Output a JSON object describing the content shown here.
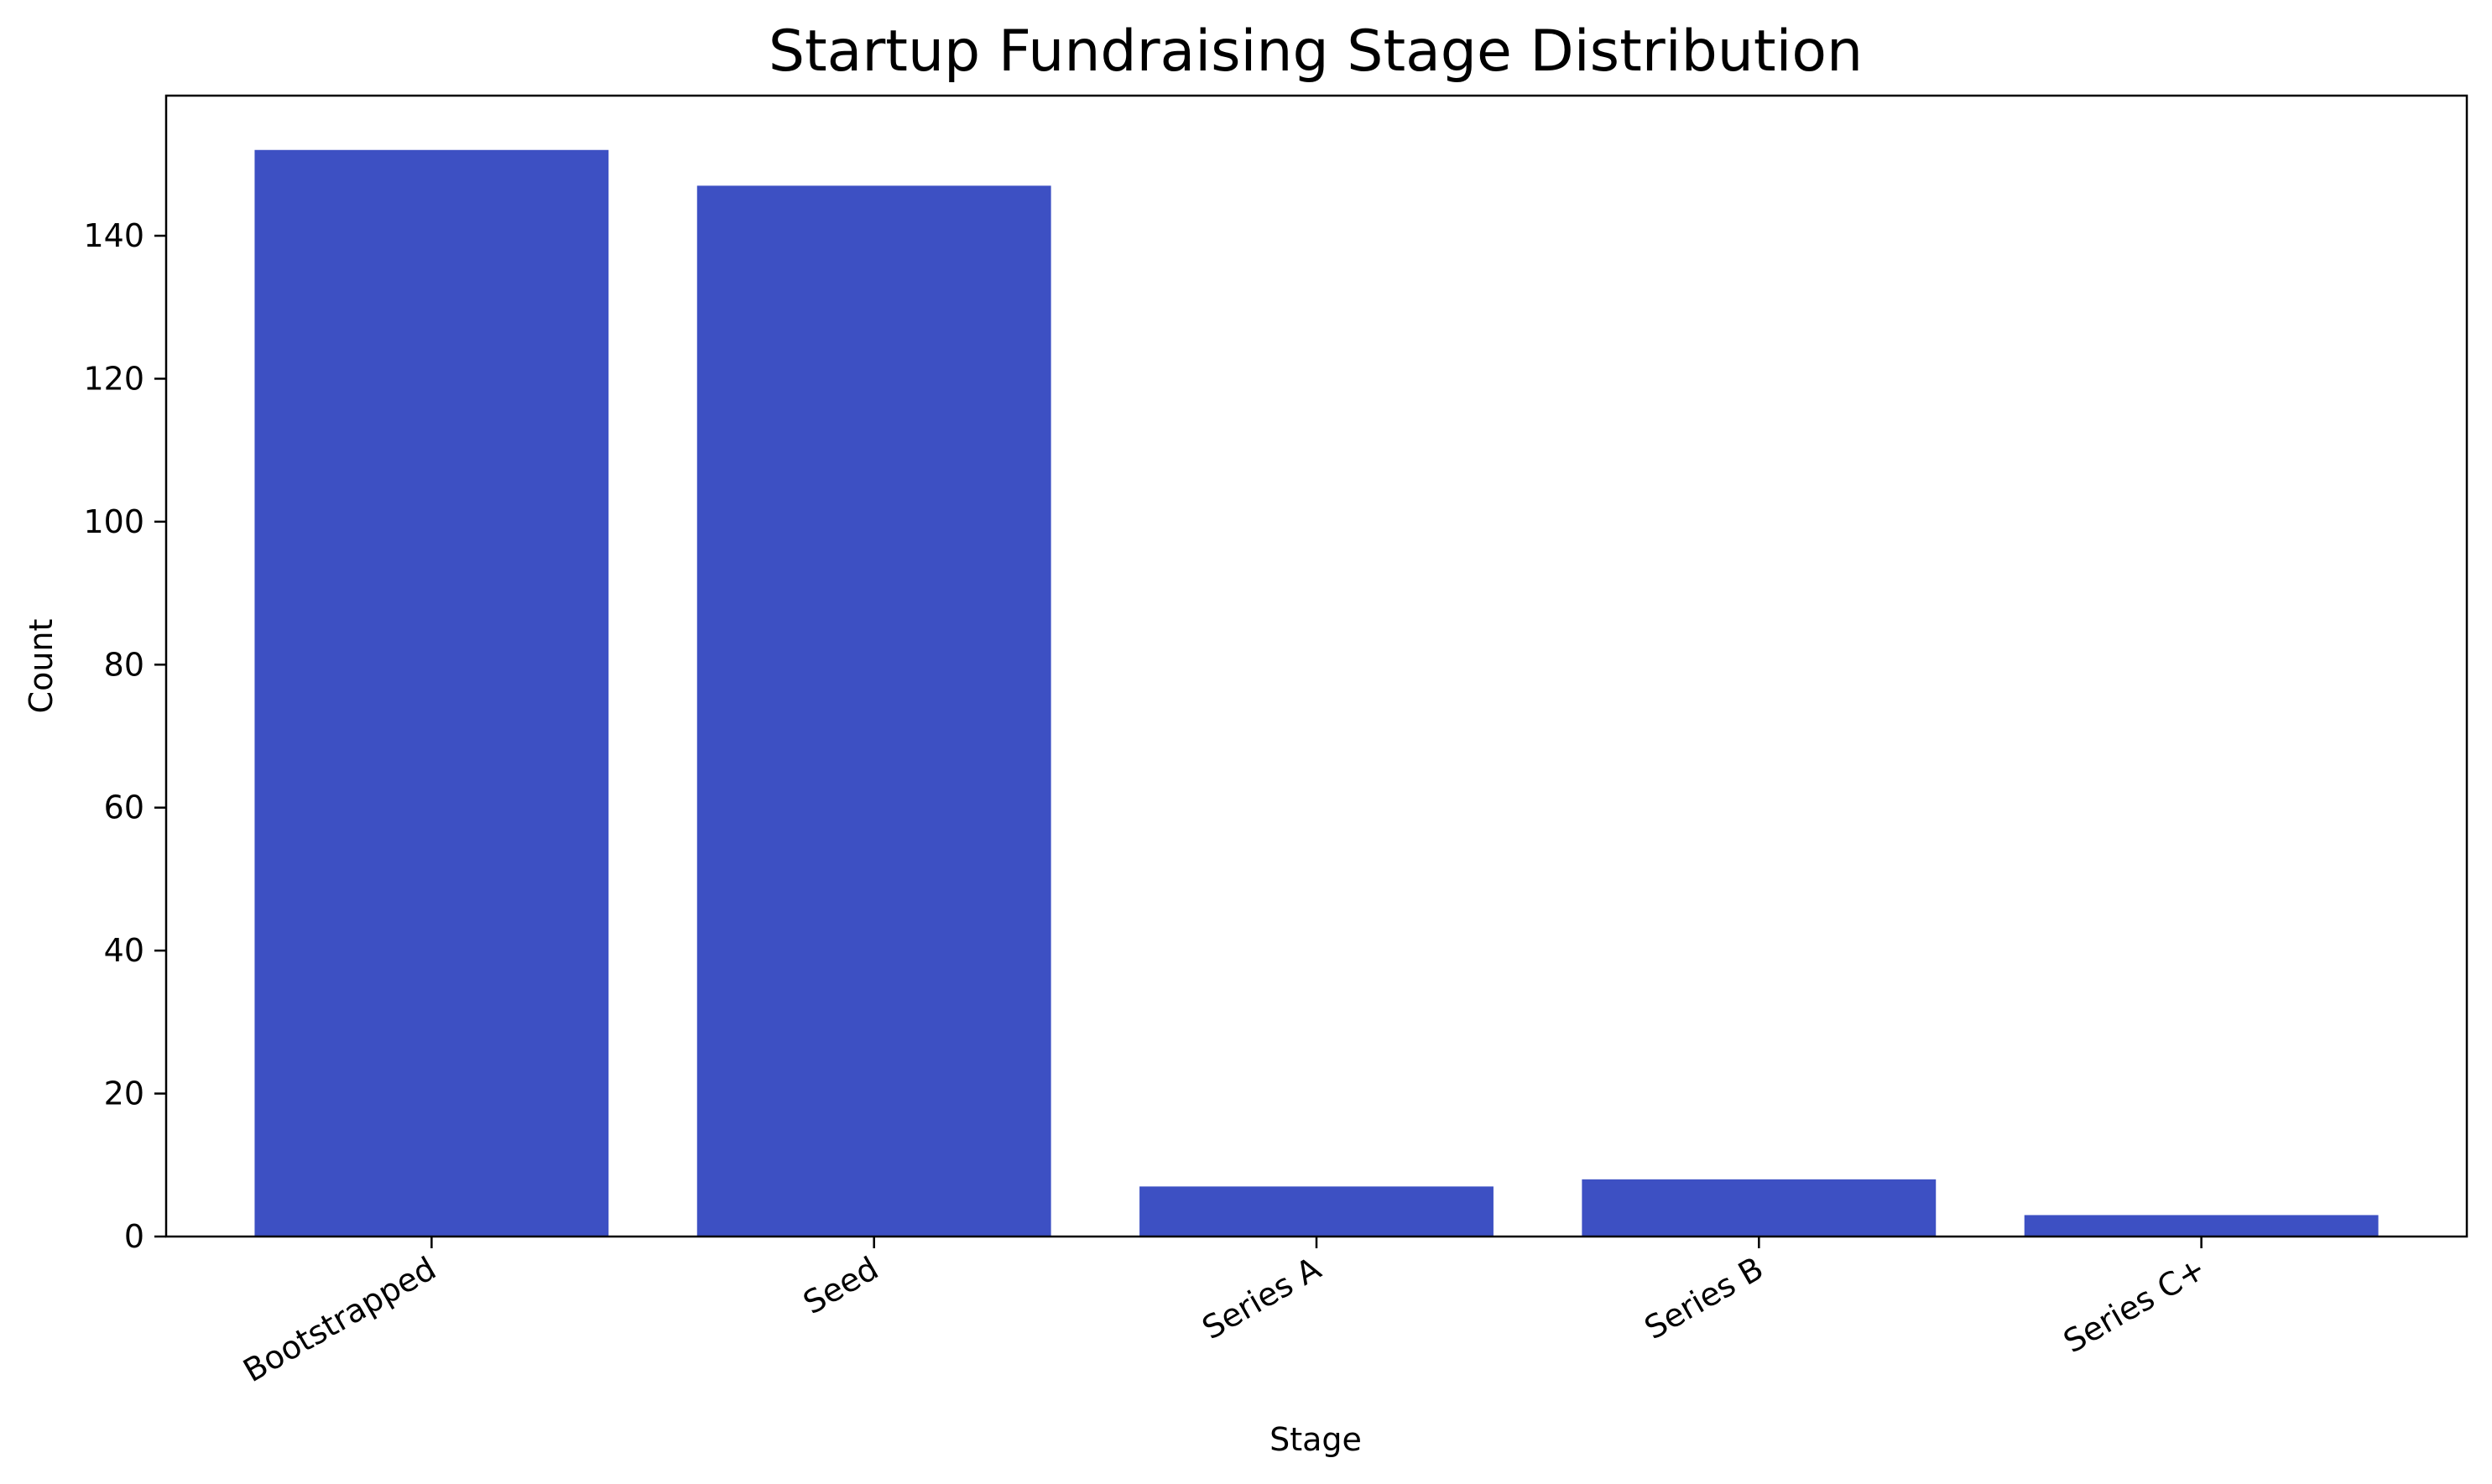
{
  "chart_data": {
    "type": "bar",
    "title": "Startup Fundraising Stage Distribution",
    "xlabel": "Stage",
    "ylabel": "Count",
    "categories": [
      "Bootstrapped",
      "Seed",
      "Series A",
      "Series B",
      "Series C+"
    ],
    "values": [
      152,
      147,
      7,
      8,
      3
    ],
    "ylim": [
      0,
      159.6
    ],
    "yticks": [
      0,
      20,
      40,
      60,
      80,
      100,
      120,
      140
    ],
    "grid": false,
    "legend": "none",
    "bar_color": "#3d50c3"
  }
}
